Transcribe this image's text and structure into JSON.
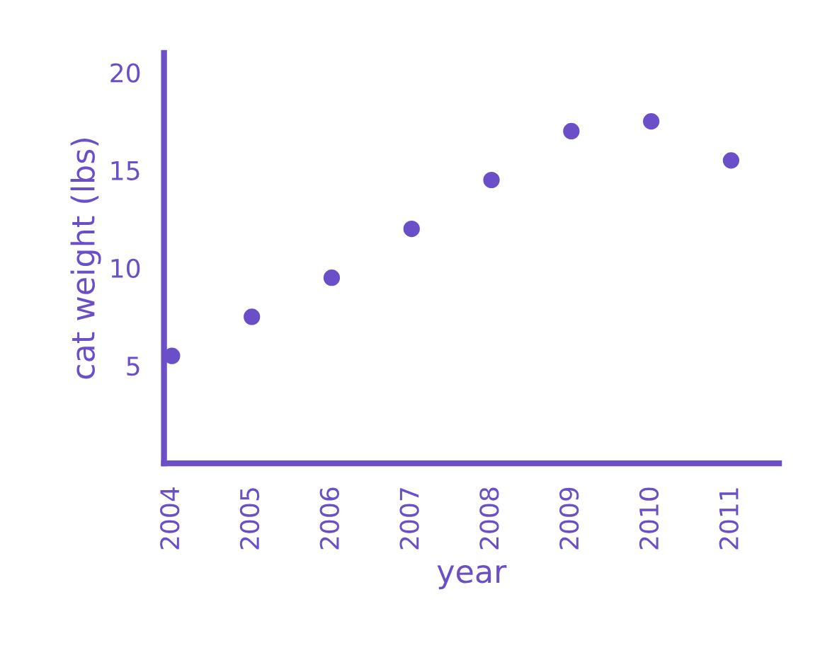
{
  "chart_data": {
    "type": "scatter",
    "xlabel": "year",
    "ylabel": "cat weight (lbs)",
    "x": [
      2004,
      2005,
      2006,
      2007,
      2008,
      2009,
      2010,
      2011
    ],
    "series": [
      {
        "color": "#6a4fc8",
        "values": [
          5.5,
          7.5,
          9.5,
          12,
          14.5,
          17,
          17.5,
          15.5
        ]
      }
    ],
    "xlim": [
      2003.9,
      2011.6
    ],
    "xticks": [
      2004,
      2005,
      2006,
      2007,
      2008,
      2009,
      2010,
      2011
    ],
    "ylim": [
      0,
      21
    ],
    "yticks": [
      5,
      10,
      15,
      20
    ],
    "grid": false,
    "marker": "circle"
  }
}
